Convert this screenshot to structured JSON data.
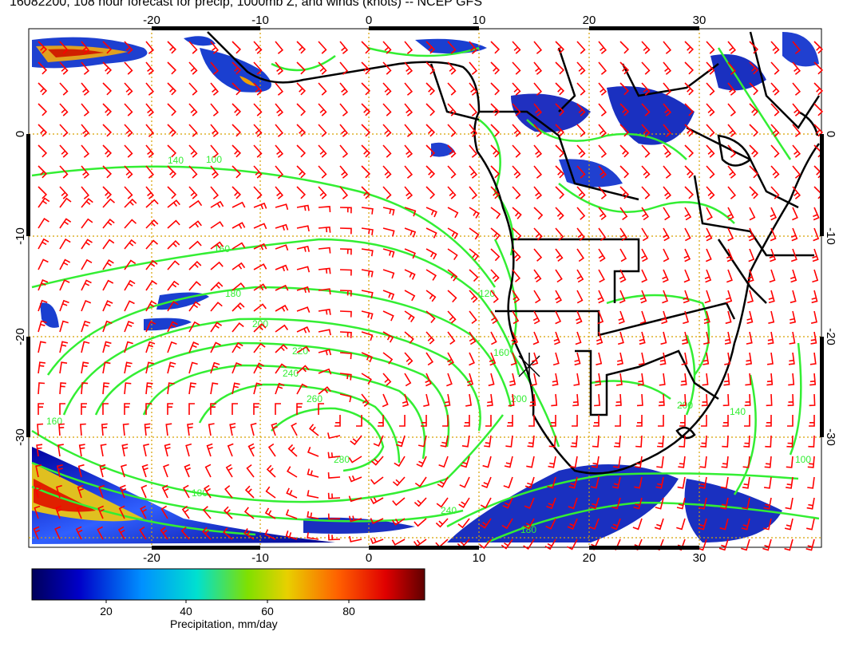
{
  "title": "16082200, 108 hour forecast for precip, 1000mb Z, and winds (knots) -- NCEP GFS",
  "map": {
    "region": "South Atlantic / southern Africa",
    "lon_range": [
      -30,
      40
    ],
    "lat_range": [
      -40,
      10
    ],
    "lon_ticks": [
      "-20",
      "-10",
      "0",
      "10",
      "20",
      "30"
    ],
    "lat_ticks": [
      "0",
      "-10",
      "-20",
      "-30"
    ],
    "gridlines": "dotted orange",
    "colors": {
      "wind_barbs": "#ff0000",
      "height_contours": "#33ee33",
      "coastlines_borders": "#000000",
      "grid": "#d8a000"
    },
    "contour_labels": [
      "100",
      "140",
      "160",
      "180",
      "200",
      "220",
      "240",
      "260",
      "280",
      "180",
      "200",
      "240",
      "200",
      "140",
      "100",
      "180",
      "120",
      "160",
      "160"
    ],
    "high_marker": "X"
  },
  "colorbar": {
    "label": "Precipitation, mm/day",
    "ticks": [
      "20",
      "40",
      "60",
      "80"
    ],
    "colors": [
      "#00008b",
      "#0000ff",
      "#00bfff",
      "#00ff80",
      "#c8e000",
      "#ff8000",
      "#ff0000",
      "#700000"
    ]
  }
}
